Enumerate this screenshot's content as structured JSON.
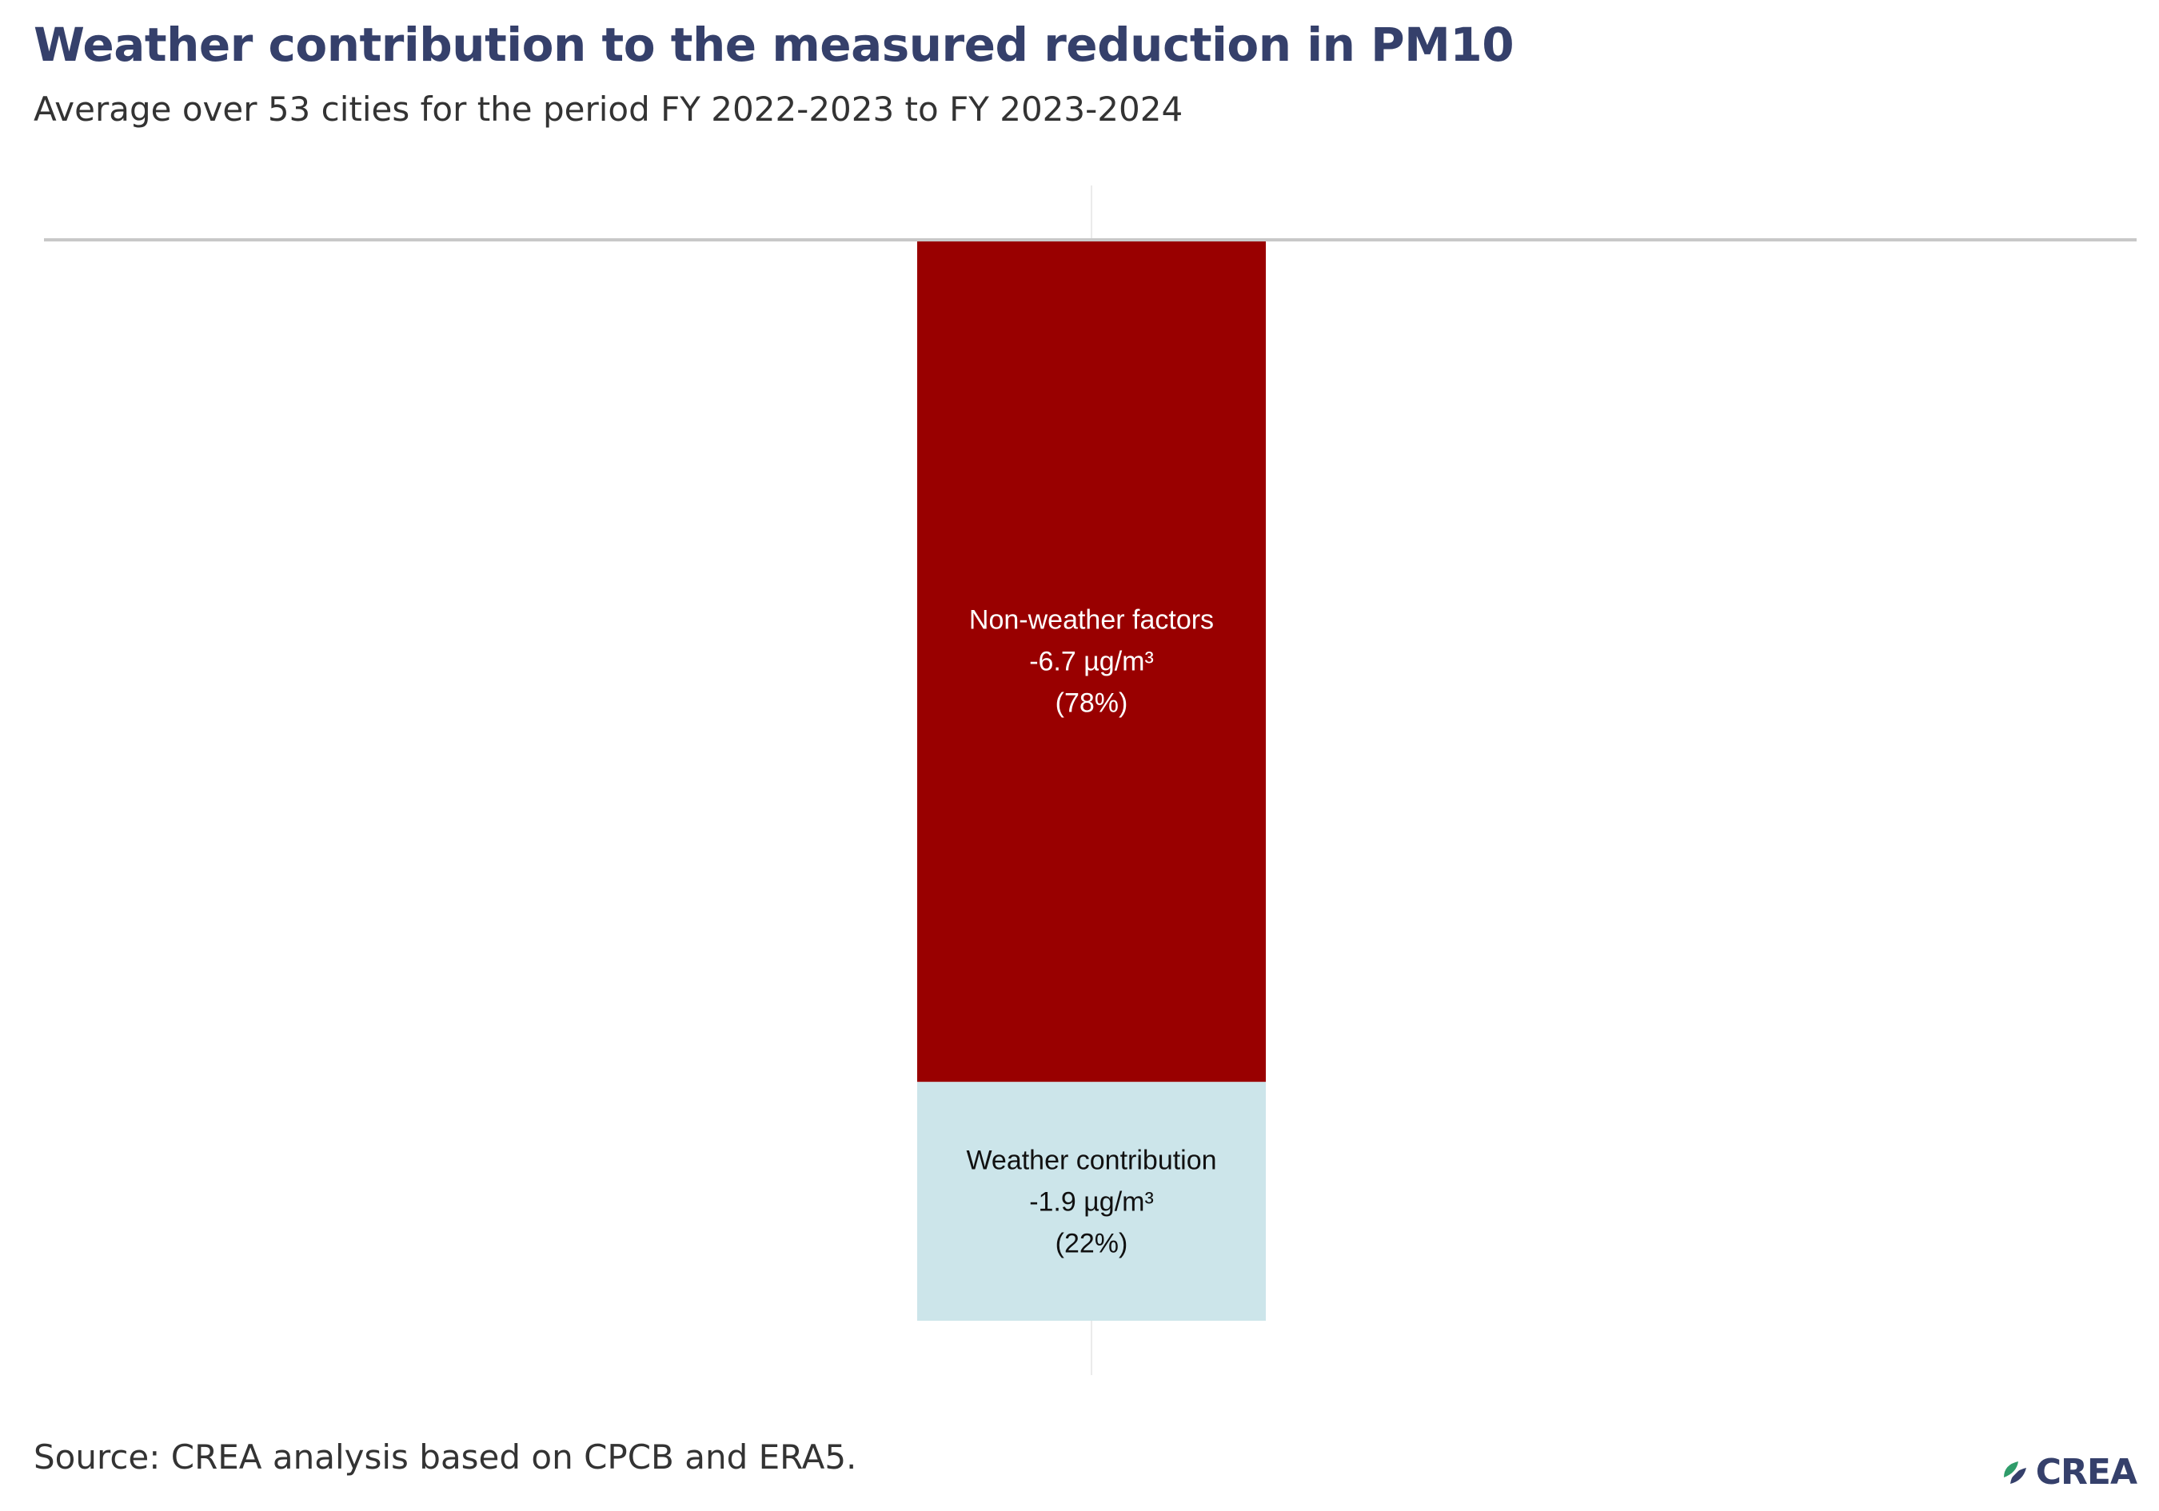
{
  "header": {
    "title": "Weather contribution to the measured reduction in PM10",
    "subtitle": "Average over 53 cities for the period FY 2022-2023 to FY 2023-2024"
  },
  "chart_data": {
    "type": "bar",
    "stacked": true,
    "orientation": "vertical",
    "categories": [
      ""
    ],
    "ylim": [
      0,
      -8.6
    ],
    "grid": false,
    "series": [
      {
        "name": "Non-weather factors",
        "values": [
          -6.7
        ],
        "share": "78%",
        "color": "#990000",
        "label_lines": [
          "Non-weather factors",
          "-6.7 µg/m³",
          "(78%)"
        ],
        "label_color": "#ffffff"
      },
      {
        "name": "Weather contribution",
        "values": [
          -1.9
        ],
        "share": "22%",
        "color": "#cce5ea",
        "label_lines": [
          "Weather contribution",
          "-1.9 µg/m³",
          "(22%)"
        ],
        "label_color": "#111111"
      }
    ]
  },
  "footer": {
    "source": "Source: CREA analysis based on CPCB and ERA5.",
    "logo_text": "CREA",
    "logo_icon": "crea-leaf-icon"
  }
}
